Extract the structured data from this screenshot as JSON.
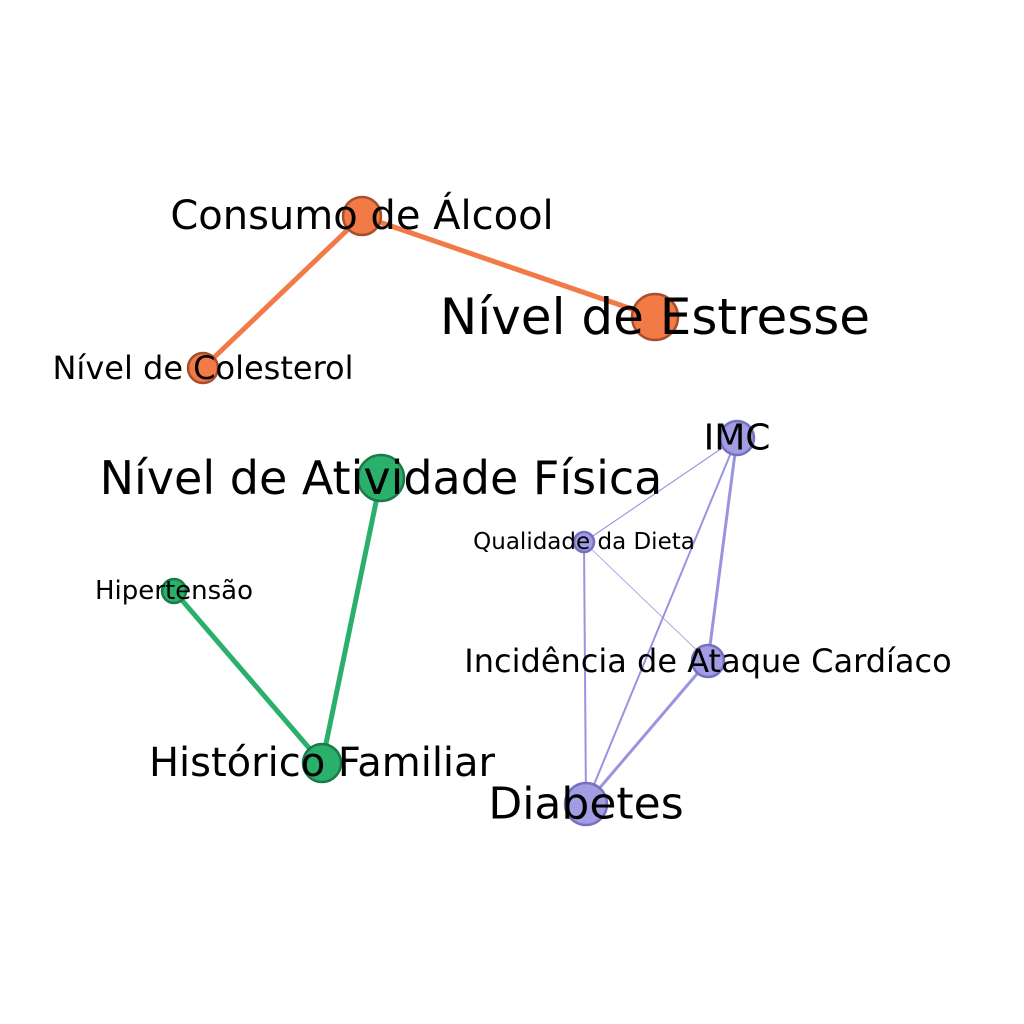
{
  "nodes": [
    {
      "id": "alcool",
      "label": "Consumo de Álcool",
      "group": "orange"
    },
    {
      "id": "estresse",
      "label": "Nível de Estresse",
      "group": "orange"
    },
    {
      "id": "colesterol",
      "label": "Nível de Colesterol",
      "group": "orange"
    },
    {
      "id": "atividade",
      "label": "Nível de Atividade Física",
      "group": "green"
    },
    {
      "id": "hipertensao",
      "label": "Hipertensão",
      "group": "green"
    },
    {
      "id": "historico",
      "label": "Histórico Familiar",
      "group": "green"
    },
    {
      "id": "imc",
      "label": "IMC",
      "group": "purple"
    },
    {
      "id": "dieta",
      "label": "Qualidade da Dieta",
      "group": "purple"
    },
    {
      "id": "ataque",
      "label": "Incidência de Ataque Cardíaco",
      "group": "purple"
    },
    {
      "id": "diabetes",
      "label": "Diabetes",
      "group": "purple"
    }
  ],
  "edges": [
    {
      "source": "alcool",
      "target": "estresse",
      "weight": "strong"
    },
    {
      "source": "alcool",
      "target": "colesterol",
      "weight": "strong"
    },
    {
      "source": "atividade",
      "target": "historico",
      "weight": "strong"
    },
    {
      "source": "hipertensao",
      "target": "historico",
      "weight": "strong"
    },
    {
      "source": "imc",
      "target": "dieta",
      "weight": "thin"
    },
    {
      "source": "imc",
      "target": "ataque",
      "weight": "medium"
    },
    {
      "source": "imc",
      "target": "diabetes",
      "weight": "light"
    },
    {
      "source": "dieta",
      "target": "ataque",
      "weight": "hairline"
    },
    {
      "source": "dieta",
      "target": "diabetes",
      "weight": "light"
    },
    {
      "source": "ataque",
      "target": "diabetes",
      "weight": "medium"
    }
  ],
  "colors": {
    "orange": {
      "fill": "#f27a47",
      "stroke": "#a84e2c",
      "edge": "#f27a47"
    },
    "green": {
      "fill": "#2bb06c",
      "stroke": "#1c7a49",
      "edge": "#2bb06c"
    },
    "purple": {
      "fill": "#a29de3",
      "stroke": "#7670c0",
      "edge": "#9a94df"
    }
  }
}
